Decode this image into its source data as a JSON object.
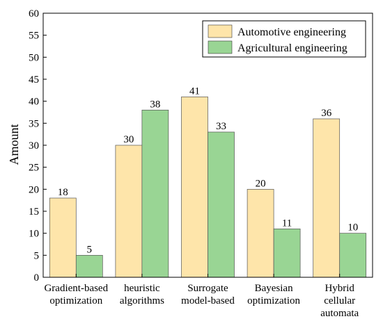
{
  "chart_data": {
    "type": "bar",
    "title": "",
    "xlabel": "",
    "ylabel": "Amount",
    "ylim": [
      0,
      60
    ],
    "yticks": [
      0,
      5,
      10,
      15,
      20,
      25,
      30,
      35,
      40,
      45,
      50,
      55,
      60
    ],
    "grid": false,
    "legend_position": "top-right",
    "categories": [
      [
        "Gradient-based",
        "optimization"
      ],
      [
        "heuristic",
        "algorithms"
      ],
      [
        "Surrogate",
        "model-based"
      ],
      [
        "Bayesian",
        "optimization"
      ],
      [
        "Hybrid",
        "cellular",
        "automata"
      ]
    ],
    "series": [
      {
        "name": "Automotive engineering",
        "color": "#FEE5AA",
        "values": [
          18,
          30,
          41,
          20,
          36
        ]
      },
      {
        "name": "Agricultural engineering",
        "color": "#99D594",
        "values": [
          5,
          38,
          33,
          11,
          10
        ]
      }
    ]
  }
}
